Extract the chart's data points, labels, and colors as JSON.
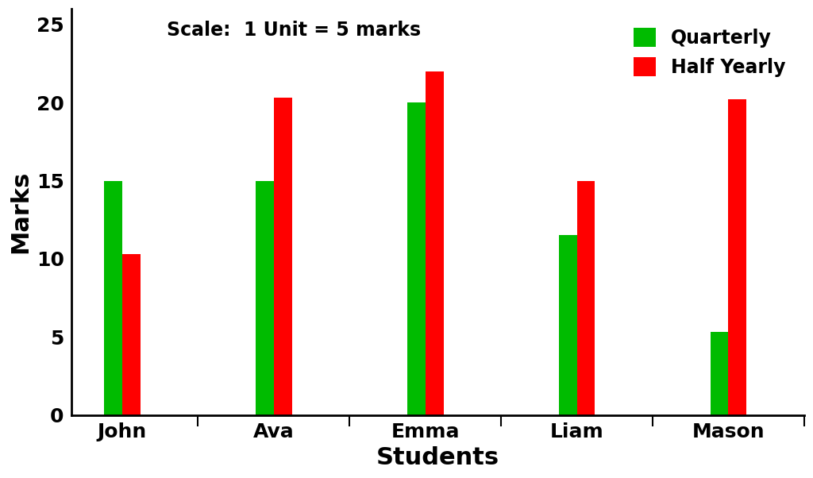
{
  "categories": [
    "John",
    "Ava",
    "Emma",
    "Liam",
    "Mason"
  ],
  "quarterly": [
    15,
    15,
    20,
    11.5,
    5.3
  ],
  "half_yearly": [
    10.3,
    20.3,
    22,
    15,
    20.2
  ],
  "bar_color_quarterly": "#00bb00",
  "bar_color_half_yearly": "#ff0000",
  "xlabel": "Students",
  "ylabel": "Marks",
  "ylim": [
    0,
    26
  ],
  "yticks": [
    0,
    5,
    10,
    15,
    20,
    25
  ],
  "annotation": "Scale:  1 Unit = 5 marks",
  "legend_quarterly": "Quarterly",
  "legend_half_yearly": "Half Yearly",
  "bar_width": 0.12,
  "bar_gap": 0.0,
  "axis_label_fontsize": 22,
  "tick_fontsize": 18,
  "legend_fontsize": 17,
  "annotation_fontsize": 17,
  "background_color": "#ffffff"
}
